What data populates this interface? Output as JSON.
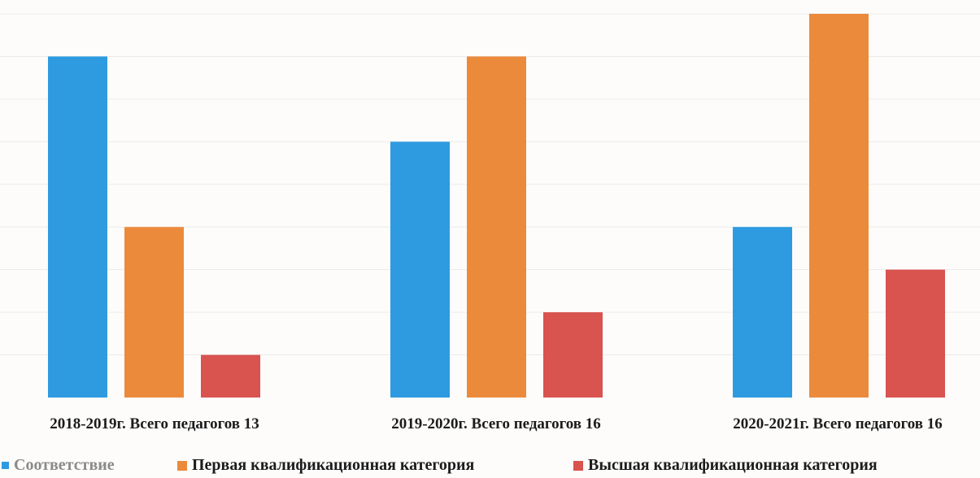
{
  "chart_data": {
    "type": "bar",
    "categories": [
      "2018-2019г. Всего педагогов 13",
      "2019-2020г. Всего педагогов 16",
      "2020-2021г. Всего педагогов 16"
    ],
    "series": [
      {
        "name": "Соответствие",
        "color": "#2e9be0",
        "values": [
          8,
          6,
          4
        ]
      },
      {
        "name": "Первая квалификационная категория",
        "color": "#ec8a3c",
        "values": [
          4,
          8,
          9
        ]
      },
      {
        "name": "Высшая квалификационная категория",
        "color": "#d9534f",
        "values": [
          1,
          2,
          3
        ]
      }
    ],
    "ylim": [
      0,
      9
    ],
    "grid": true,
    "legend_position": "bottom"
  }
}
